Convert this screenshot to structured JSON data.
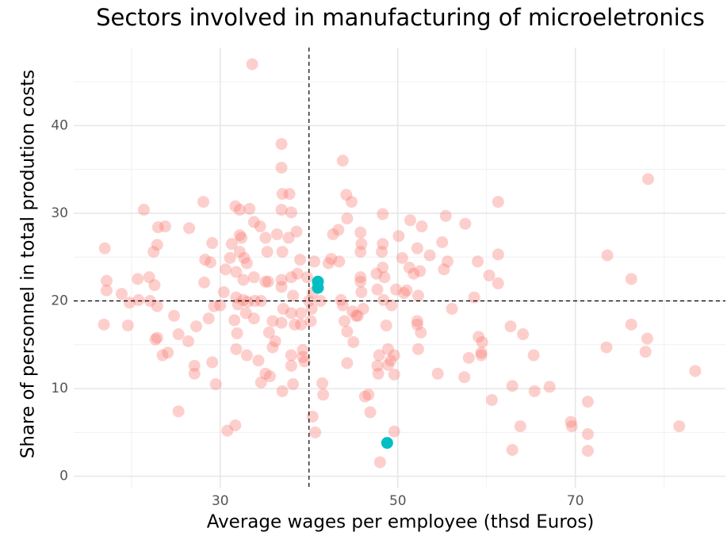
{
  "chart_data": {
    "type": "scatter",
    "title": "Sectors involved in manufacturing of microeletronics",
    "x_label": "Average wages per employee (thsd Euros)",
    "y_label": "Share of personnel in total prodution costs",
    "xlim": [
      13.5,
      86.9
    ],
    "ylim": [
      -1.3,
      48.9
    ],
    "xticks": [
      30,
      50,
      70
    ],
    "yticks": [
      0,
      10,
      20,
      30,
      40
    ],
    "xgrid_minor": [
      20,
      40,
      60,
      80
    ],
    "ygrid_minor": [
      5,
      15,
      25,
      35,
      45
    ],
    "grid": true,
    "vline": 40,
    "hline": 20,
    "series": [
      {
        "color": "#F8766D",
        "alpha": 0.35,
        "x": [
          33.6,
          78.2,
          17.0,
          17.2,
          17.2,
          16.9,
          19.6,
          18.9,
          19.8,
          20.7,
          21.4,
          22.0,
          22.6,
          20.8,
          22.1,
          22.9,
          22.5,
          22.9,
          23.0,
          23.8,
          22.7,
          22.9,
          23.5,
          24.1,
          24.8,
          25.3,
          25.3,
          26.5,
          26.4,
          27.1,
          27.1,
          27.3,
          28.1,
          28.3,
          28.2,
          28.7,
          28.9,
          29.1,
          29.1,
          29.5,
          29.3,
          30.0,
          30.4,
          30.8,
          31.7,
          30.6,
          31.1,
          31.3,
          31.7,
          32.2,
          31.8,
          32.0,
          31.6,
          31.9,
          31.8,
          31.8,
          32.2,
          32.4,
          32.2,
          32.7,
          33.0,
          32.6,
          32.6,
          32.9,
          33.1,
          33.0,
          33.3,
          33.8,
          33.8,
          33.8,
          33.9,
          34.5,
          34.3,
          34.6,
          34.6,
          35.1,
          35.3,
          35.1,
          35.4,
          35.1,
          35.5,
          35.6,
          35.9,
          36.4,
          35.9,
          36.2,
          36.9,
          36.9,
          36.9,
          37.0,
          37.0,
          36.9,
          36.9,
          37.1,
          36.9,
          37.0,
          37.8,
          37.7,
          38.0,
          38.0,
          38.2,
          38.0,
          38.4,
          38.0,
          38.0,
          38.2,
          38.6,
          38.7,
          39.0,
          39.1,
          39.1,
          39.3,
          39.3,
          39.5,
          39.8,
          40.0,
          40.4,
          40.3,
          40.2,
          40.6,
          40.4,
          40.7,
          41.3,
          41.5,
          41.6,
          42.2,
          42.5,
          42.7,
          43.3,
          43.4,
          43.8,
          43.6,
          43.8,
          44.0,
          44.2,
          44.3,
          44.3,
          44.3,
          44.8,
          44.9,
          45.0,
          45.3,
          45.5,
          45.8,
          45.8,
          45.8,
          45.9,
          45.8,
          45.9,
          46.1,
          46.3,
          46.7,
          46.9,
          47.6,
          47.7,
          47.7,
          47.8,
          47.9,
          48.0,
          48.3,
          48.2,
          48.3,
          48.3,
          48.5,
          48.4,
          48.7,
          48.9,
          48.9,
          49.3,
          49.2,
          49.6,
          49.6,
          49.6,
          49.8,
          50.1,
          50.5,
          50.7,
          51.0,
          51.3,
          51.4,
          51.8,
          52.2,
          52.2,
          52.2,
          52.3,
          52.3,
          52.5,
          52.7,
          52.6,
          53.6,
          54.5,
          55.0,
          55.4,
          55.2,
          55.6,
          56.1,
          57.6,
          57.5,
          58.0,
          58.6,
          59.0,
          59.1,
          59.5,
          59.4,
          59.4,
          60.3,
          60.6,
          61.3,
          61.3,
          61.3,
          62.7,
          62.9,
          62.9,
          63.8,
          64.1,
          65.3,
          65.4,
          67.1,
          69.5,
          69.6,
          71.4,
          71.4,
          71.4,
          73.5,
          73.6,
          76.3,
          76.3,
          77.9,
          78.1,
          81.7,
          83.5
        ],
        "values": [
          47.0,
          33.9,
          26.0,
          22.3,
          21.2,
          17.3,
          17.2,
          20.8,
          19.8,
          22.5,
          30.4,
          22.7,
          21.8,
          20.1,
          20.0,
          19.4,
          25.6,
          26.4,
          28.4,
          28.5,
          15.6,
          15.8,
          13.8,
          14.1,
          18.3,
          7.4,
          16.2,
          28.3,
          15.4,
          12.6,
          11.7,
          17.1,
          31.3,
          24.7,
          22.1,
          18.0,
          24.4,
          26.6,
          13.0,
          10.5,
          19.4,
          19.5,
          21.0,
          5.2,
          5.8,
          23.6,
          24.9,
          26.5,
          30.8,
          30.4,
          23.3,
          19.6,
          17.8,
          16.3,
          14.5,
          20.4,
          25.6,
          27.2,
          27.5,
          24.9,
          24.3,
          22.4,
          20.1,
          18.6,
          19.9,
          13.8,
          30.5,
          29.0,
          22.7,
          18.0,
          20.0,
          28.5,
          13.2,
          10.7,
          20.0,
          27.2,
          25.6,
          22.2,
          22.2,
          11.7,
          16.4,
          11.4,
          17.7,
          27.6,
          14.7,
          15.4,
          37.9,
          35.2,
          30.4,
          32.2,
          25.6,
          22.4,
          21.6,
          19.1,
          17.5,
          9.7,
          32.2,
          27.2,
          30.1,
          22.7,
          20.6,
          18.6,
          17.3,
          13.8,
          12.6,
          10.5,
          27.9,
          23.1,
          24.7,
          18.6,
          17.3,
          14.4,
          13.6,
          13.1,
          22.7,
          20.0,
          20.9,
          19.1,
          17.7,
          24.5,
          6.8,
          5.0,
          20.0,
          10.6,
          9.3,
          24.3,
          24.8,
          27.6,
          28.1,
          24.5,
          36.0,
          20.1,
          19.5,
          17.7,
          32.1,
          29.4,
          16.5,
          12.9,
          31.3,
          18.8,
          15.3,
          18.3,
          18.3,
          27.8,
          25.6,
          22.7,
          26.5,
          22.2,
          21.0,
          19.1,
          9.1,
          9.3,
          7.3,
          23.1,
          21.3,
          12.6,
          11.7,
          13.8,
          1.6,
          29.9,
          25.6,
          26.5,
          23.8,
          22.7,
          20.1,
          17.2,
          14.5,
          12.7,
          19.5,
          13.2,
          13.8,
          11.6,
          5.1,
          21.3,
          27.4,
          24.9,
          20.9,
          21.2,
          23.8,
          29.2,
          23.1,
          26.0,
          17.3,
          17.7,
          14.5,
          20.6,
          23.4,
          28.5,
          16.4,
          25.2,
          11.7,
          26.7,
          29.7,
          23.6,
          24.5,
          19.1,
          28.8,
          11.3,
          13.5,
          20.4,
          24.5,
          15.9,
          15.3,
          14.1,
          13.8,
          22.9,
          8.7,
          31.3,
          25.3,
          22.0,
          17.1,
          10.3,
          3.0,
          5.7,
          16.2,
          13.8,
          9.7,
          10.2,
          6.2,
          5.7,
          8.5,
          4.8,
          2.9,
          14.7,
          25.2,
          22.5,
          17.3,
          14.2,
          15.7,
          5.7,
          12.0
        ]
      },
      {
        "color": "#00BFC4",
        "alpha": 1,
        "x": [
          41.0,
          41.0,
          48.8
        ],
        "values": [
          22.2,
          21.5,
          3.8
        ]
      }
    ]
  }
}
